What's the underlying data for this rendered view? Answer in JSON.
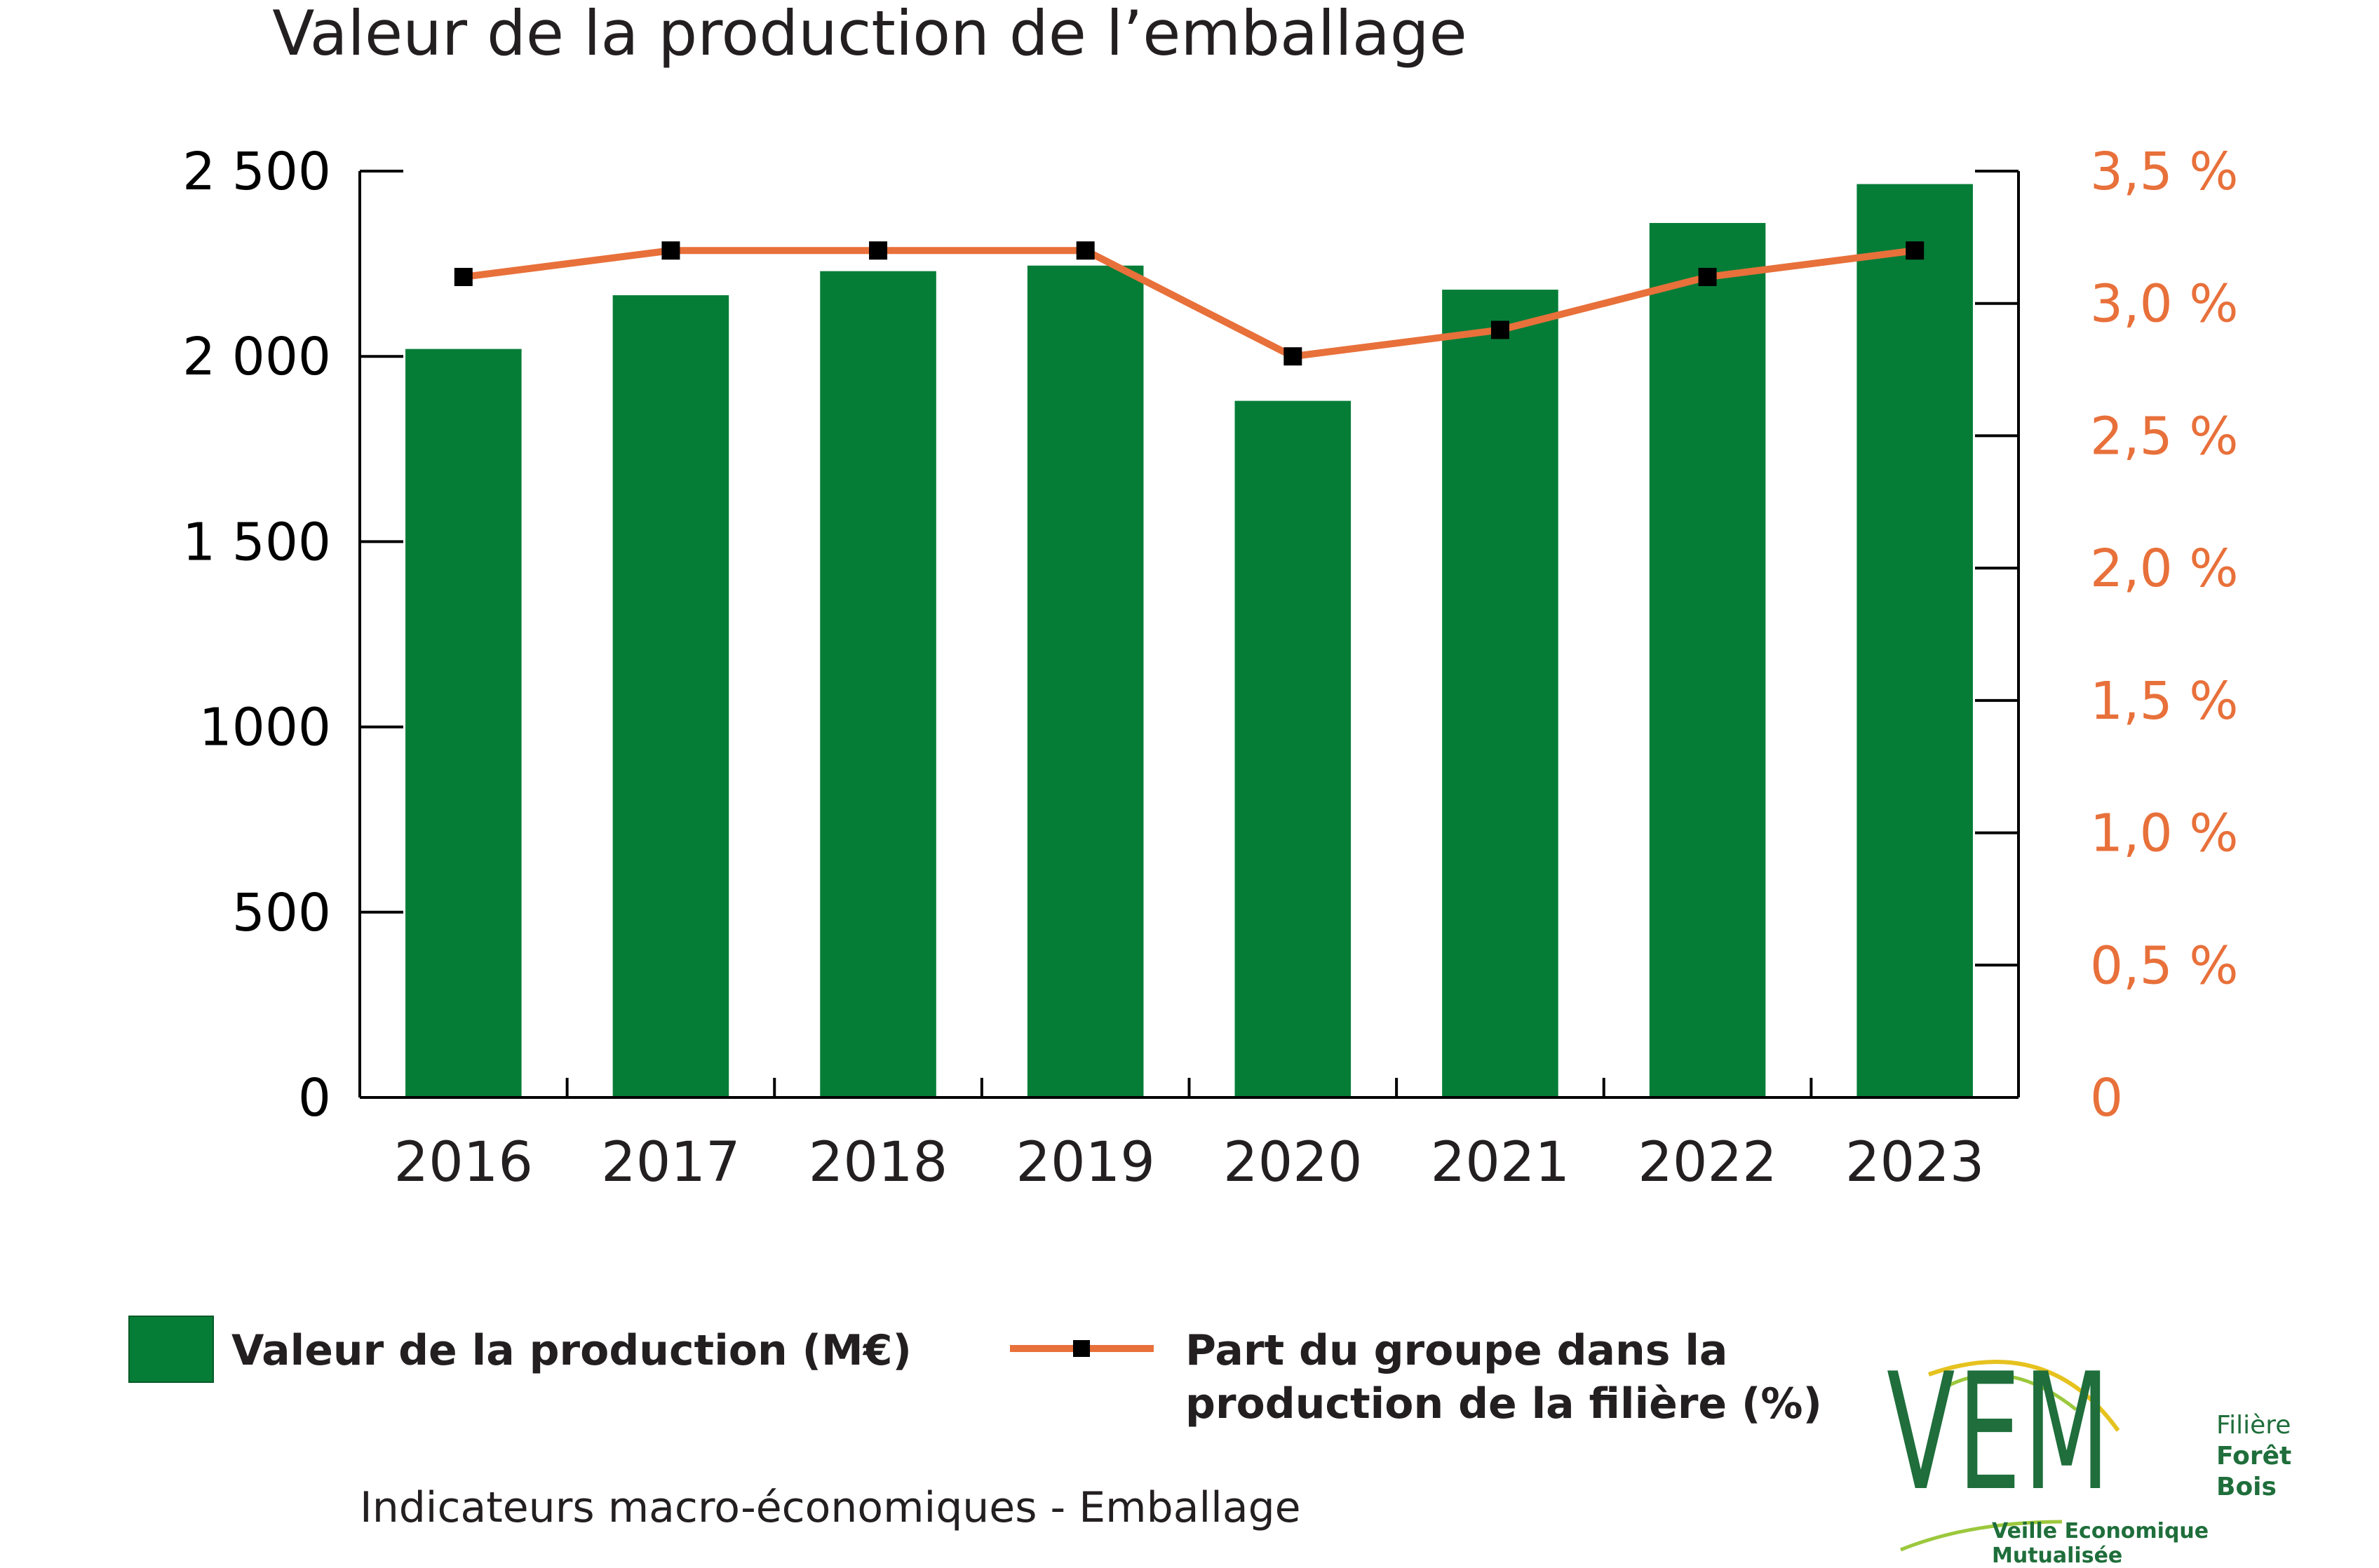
{
  "chart_data": {
    "type": "bar+line",
    "title": "Valeur de la production de l’emballage",
    "categories": [
      "2016",
      "2017",
      "2018",
      "2019",
      "2020",
      "2021",
      "2022",
      "2023"
    ],
    "series": [
      {
        "name": "Valeur de la production (M€)",
        "type": "bar",
        "axis": "left",
        "color": "#067d37",
        "values": [
          2020,
          2165,
          2230,
          2245,
          1880,
          2180,
          2360,
          2465
        ]
      },
      {
        "name": "Part du groupe dans la production de la filière (%)",
        "type": "line",
        "axis": "right",
        "color": "#e8703a",
        "marker_color": "#000000",
        "values": [
          3.1,
          3.2,
          3.2,
          3.2,
          2.8,
          2.9,
          3.1,
          3.2
        ]
      }
    ],
    "y_left": {
      "ylim": [
        0,
        2500
      ],
      "ticks": [
        0,
        500,
        1000,
        1500,
        2000,
        2500
      ],
      "tick_labels": [
        "0",
        "500",
        "1000",
        "1 500",
        "2 000",
        "2 500"
      ]
    },
    "y_right": {
      "ylim": [
        0,
        3.5
      ],
      "ticks": [
        0,
        0.5,
        1.0,
        1.5,
        2.0,
        2.5,
        3.0,
        3.5
      ],
      "tick_labels": [
        "0",
        "0,5 %",
        "1,0 %",
        "1,5 %",
        "2,0 %",
        "2,5 %",
        "3,0 %",
        "3,5 %"
      ],
      "color": "#e8703a"
    },
    "grid": false,
    "legend_position": "bottom"
  },
  "legend": {
    "bar_label": "Valeur de la production (M€)",
    "line_label_1": "Part du groupe dans la",
    "line_label_2": "production de la filière (%)"
  },
  "footer": {
    "note": "Indicateurs macro-économiques - Emballage"
  },
  "logo": {
    "letters": "VEM",
    "line1": "Filière",
    "line2": "Forêt",
    "line3": "Bois",
    "tagline": "Veille Economique Mutualisée"
  }
}
